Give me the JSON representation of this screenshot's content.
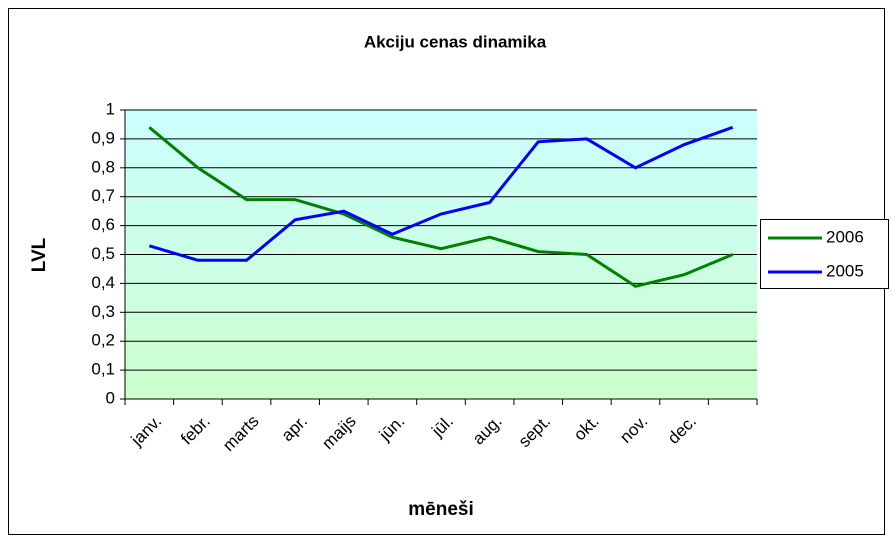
{
  "chart_data": {
    "type": "line",
    "title": "Akciju cenas dinamika",
    "x_label": "mēneši",
    "y_label": "LVL",
    "categories": [
      "janv.",
      "febr.",
      "marts",
      "apr.",
      "maijs",
      "jūn.",
      "jūl.",
      "aug.",
      "sept.",
      "okt.",
      "nov.",
      "dec.",
      null
    ],
    "series": [
      {
        "name": "2006",
        "color": "#008000",
        "values": [
          0.94,
          0.8,
          0.69,
          0.69,
          0.64,
          0.56,
          0.52,
          0.56,
          0.51,
          0.5,
          0.39,
          0.43,
          0.5
        ]
      },
      {
        "name": "2005",
        "color": "#0000ff",
        "values": [
          0.53,
          0.48,
          0.48,
          0.62,
          0.65,
          0.57,
          0.64,
          0.68,
          0.89,
          0.9,
          0.8,
          0.88,
          0.94
        ]
      }
    ],
    "ylim": [
      0,
      1
    ],
    "yticks": [
      0,
      {
        "value": 0.1,
        "label": "0,1"
      },
      {
        "value": 0.2,
        "label": "0,2"
      },
      {
        "value": 0.3,
        "label": "0,3"
      },
      {
        "value": 0.4,
        "label": "0,4"
      },
      {
        "value": 0.5,
        "label": "0,5"
      },
      {
        "value": 0.6,
        "label": "0,6"
      },
      {
        "value": 0.7,
        "label": "0,7"
      },
      {
        "value": 0.8,
        "label": "0,8"
      },
      {
        "value": 0.9,
        "label": "0,9"
      },
      1
    ],
    "grid": true,
    "legend": "right"
  }
}
